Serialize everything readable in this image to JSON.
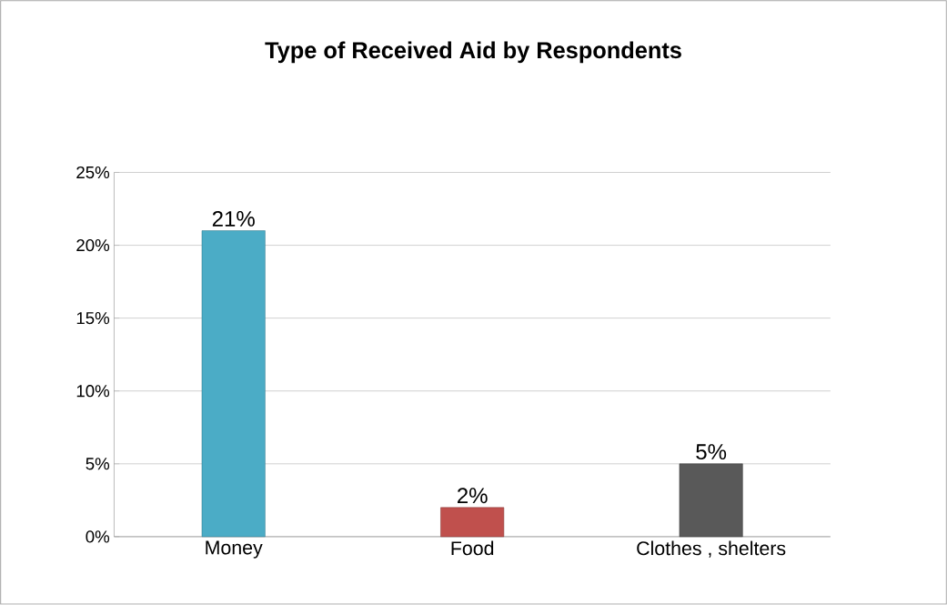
{
  "chart_data": {
    "type": "bar",
    "title": "Type of Received Aid by Respondents",
    "categories": [
      "Money",
      "Food",
      "Clothes , shelters"
    ],
    "values": [
      21,
      2,
      5
    ],
    "colors": [
      "#4bacc6",
      "#c0504d",
      "#595959"
    ],
    "value_labels": [
      "21%",
      "2%",
      "5%"
    ],
    "ylim": [
      0,
      25
    ],
    "yticks": [
      {
        "value": 0,
        "label": "0%"
      },
      {
        "value": 5,
        "label": "5%"
      },
      {
        "value": 10,
        "label": "10%"
      },
      {
        "value": 15,
        "label": "15%"
      },
      {
        "value": 20,
        "label": "20%"
      },
      {
        "value": 25,
        "label": "25%"
      }
    ],
    "grid": "y"
  }
}
